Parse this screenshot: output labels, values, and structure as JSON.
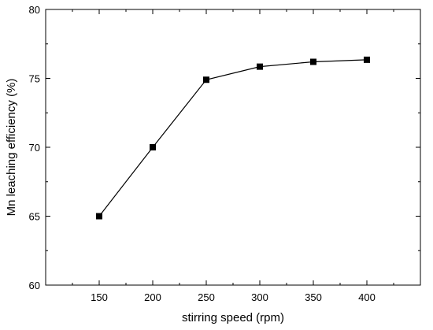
{
  "chart_data": {
    "type": "line",
    "title": "",
    "xlabel": "stirring speed (rpm)",
    "ylabel": "Mn leaching efficiency (%)",
    "x": [
      150,
      200,
      250,
      300,
      350,
      400
    ],
    "series": [
      {
        "values": [
          65.0,
          70.0,
          74.9,
          75.85,
          76.2,
          76.35
        ]
      }
    ],
    "xlim": [
      100,
      450
    ],
    "ylim": [
      60,
      80
    ],
    "xticks": [
      150,
      200,
      250,
      300,
      350,
      400
    ],
    "yticks": [
      60,
      65,
      70,
      75,
      80
    ],
    "marker": "square",
    "grid": false,
    "legend": "none",
    "colors": {
      "line": "#000000",
      "marker": "#000000",
      "axis": "#000000"
    }
  }
}
